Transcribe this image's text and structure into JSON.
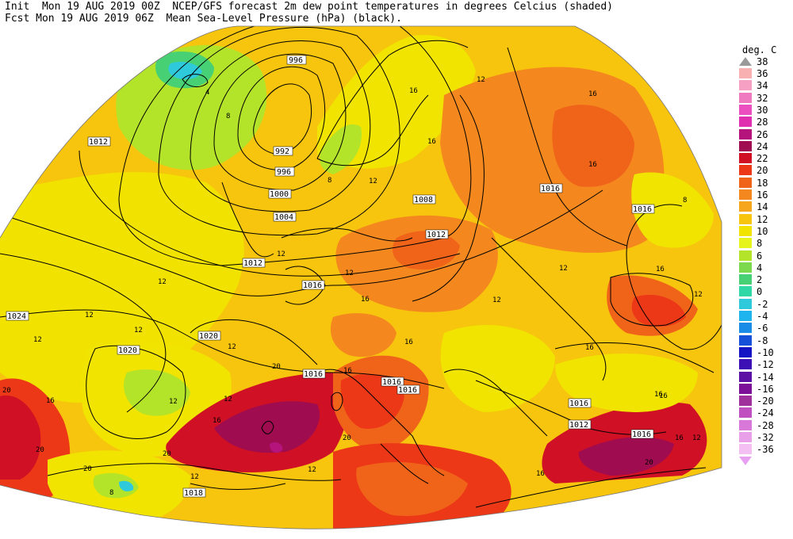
{
  "header": {
    "line1": "Init  Mon 19 AUG 2019 00Z  NCEP/GFS forecast 2m dew point temperatures in degrees Celcius (shaded)",
    "line2": "Fcst Mon 19 AUG 2019 06Z  Mean Sea-Level Pressure (hPa) (black)."
  },
  "colorbar": {
    "title": "deg. C",
    "top_label": "38",
    "levels": [
      "36",
      "34",
      "32",
      "30",
      "28",
      "26",
      "24",
      "22",
      "20",
      "18",
      "16",
      "14",
      "12",
      "10",
      "8",
      "6",
      "4",
      "2",
      "0",
      "-2",
      "-4",
      "-6",
      "-8",
      "-10",
      "-12",
      "-14",
      "-16",
      "-20",
      "-24",
      "-28",
      "-32",
      "-36"
    ],
    "colors": [
      "#f9b0b0",
      "#f6a0c4",
      "#f07ac0",
      "#ec50c0",
      "#e030b0",
      "#b4147c",
      "#a00c50",
      "#d01024",
      "#ec3816",
      "#f0641a",
      "#f4881e",
      "#f6a61c",
      "#f7c40e",
      "#f0e400",
      "#e6f41c",
      "#b4e42a",
      "#7cd84c",
      "#48d074",
      "#30d8a6",
      "#2ecadc",
      "#20b4ee",
      "#1a8ce8",
      "#1450d8",
      "#1414c4",
      "#3c10b4",
      "#5c10a4",
      "#7c1098",
      "#a0309c",
      "#c050c0",
      "#d878d8",
      "#e8a0e8",
      "#f4c0f4"
    ]
  },
  "isobars": [
    "996",
    "992",
    "996",
    "1000",
    "1004",
    "1008",
    "1012",
    "1012",
    "1012",
    "1016",
    "1016",
    "1016",
    "1016",
    "1016",
    "1016",
    "1016",
    "1016",
    "1020",
    "1020",
    "1024",
    "1018",
    "1012",
    "1016"
  ],
  "shading_labels": [
    "4",
    "8",
    "8",
    "12",
    "12",
    "12",
    "12",
    "12",
    "12",
    "12",
    "12",
    "12",
    "12",
    "12",
    "12",
    "16",
    "16",
    "16",
    "16",
    "16",
    "16",
    "16",
    "16",
    "16",
    "16",
    "16",
    "16",
    "20",
    "20",
    "20",
    "20",
    "20",
    "20",
    "20",
    "12",
    "12",
    "12",
    "12",
    "8",
    "8",
    "12",
    "16",
    "16",
    "16"
  ]
}
